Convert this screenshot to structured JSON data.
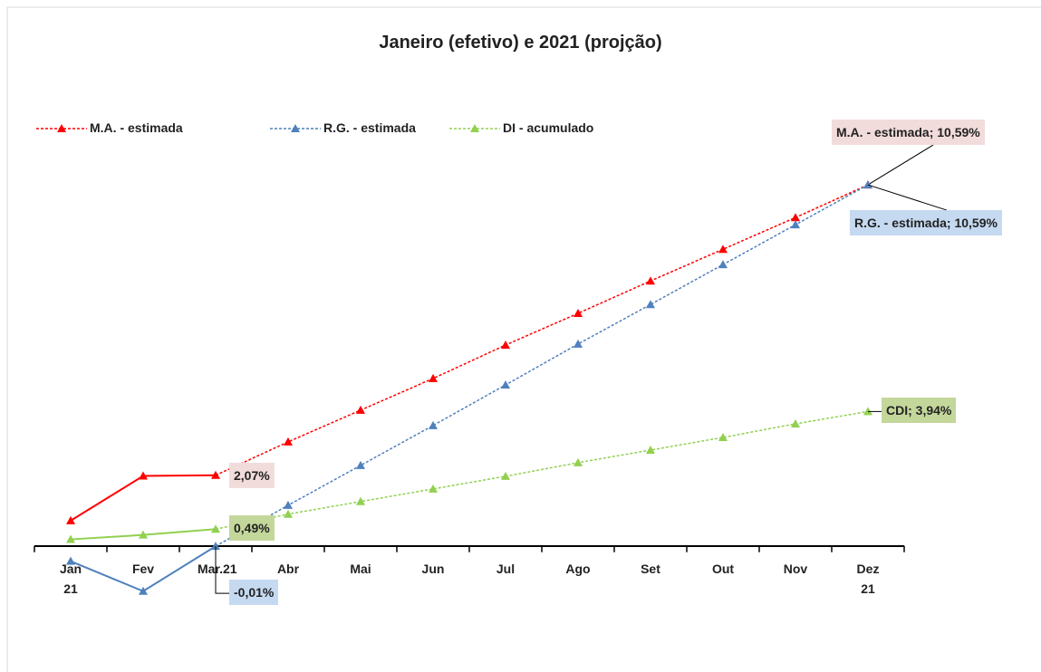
{
  "chart_data": {
    "type": "line",
    "title": "Janeiro (efetivo) e 2021 (projção)",
    "categories": [
      "Jan 21",
      "Fev",
      "Mar.21",
      "Abr",
      "Mai",
      "Jun",
      "Jul",
      "Ago",
      "Set",
      "Out",
      "Nov",
      "Dez 21"
    ],
    "ylim": [
      -2,
      12
    ],
    "legend": "top-left",
    "series": [
      {
        "name": "M.A. - estimada",
        "color": "#ff0000",
        "values": [
          0.74,
          2.05,
          2.07,
          3.05,
          3.98,
          4.91,
          5.89,
          6.82,
          7.77,
          8.7,
          9.63,
          10.59
        ],
        "value_labels": [
          null,
          null,
          "2,07%",
          null,
          null,
          null,
          null,
          null,
          null,
          null,
          null,
          "M.A. - estimada; 10,59%"
        ],
        "label_color": "#f2dcdb"
      },
      {
        "name": "R.G. - estimada",
        "color": "#4f81bd",
        "values": [
          -0.45,
          -1.33,
          -0.01,
          1.19,
          2.36,
          3.53,
          4.72,
          5.92,
          7.08,
          8.25,
          9.42,
          10.59
        ],
        "value_labels": [
          null,
          null,
          "-0,01%",
          null,
          null,
          null,
          null,
          null,
          null,
          null,
          null,
          "R.G. - estimada; 10,59%"
        ],
        "label_color": "#c5d9f1"
      },
      {
        "name": "DI - acumulado",
        "color": "#92d050",
        "values": [
          0.19,
          0.32,
          0.49,
          0.93,
          1.3,
          1.67,
          2.04,
          2.44,
          2.81,
          3.18,
          3.58,
          3.94
        ],
        "value_labels": [
          null,
          null,
          "0,49%",
          null,
          null,
          null,
          null,
          null,
          null,
          null,
          null,
          "CDI; 3,94%"
        ],
        "label_color": "#c4d79b"
      }
    ]
  }
}
